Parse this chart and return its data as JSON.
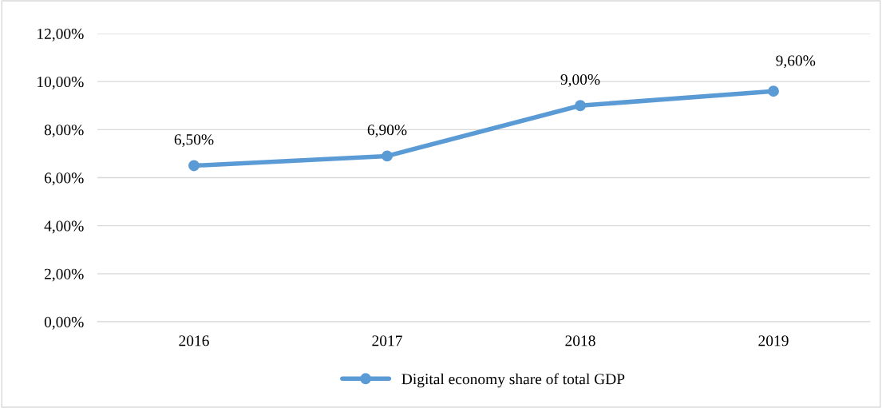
{
  "chart_data": {
    "type": "line",
    "categories": [
      "2016",
      "2017",
      "2018",
      "2019"
    ],
    "series": [
      {
        "name": "Digital economy share of total GDP",
        "color": "#5b9bd5",
        "values": [
          6.5,
          6.9,
          9.0,
          9.6
        ],
        "value_labels": [
          "6,50%",
          "6,90%",
          "9,00%",
          "9,60%"
        ]
      }
    ],
    "ylim": [
      0,
      12
    ],
    "yticks": [
      {
        "value": 0,
        "label": "0,00%"
      },
      {
        "value": 2,
        "label": "2,00%"
      },
      {
        "value": 4,
        "label": "4,00%"
      },
      {
        "value": 6,
        "label": "6,00%"
      },
      {
        "value": 8,
        "label": "8,00%"
      },
      {
        "value": 10,
        "label": "10,00%"
      },
      {
        "value": 12,
        "label": "12,00%"
      }
    ],
    "grid": "y",
    "legend": "bottom",
    "marker": "circle",
    "line_style": "solid"
  }
}
